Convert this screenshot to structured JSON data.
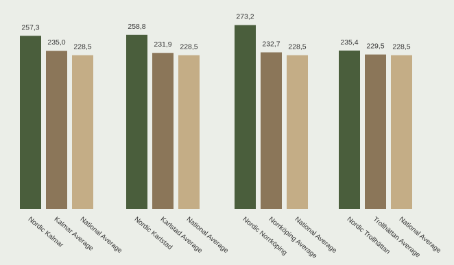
{
  "chart_data": {
    "type": "bar",
    "title": "",
    "xlabel": "",
    "ylabel": "",
    "ylim": [
      0,
      280
    ],
    "grid": false,
    "legend": "none",
    "colors": [
      "#4a5e3c",
      "#8b7659",
      "#c4ad86"
    ],
    "groups": [
      {
        "categories": [
          "Nordic Kalmar",
          "Kalmar Average",
          "National Average"
        ],
        "values": [
          257.3,
          235.0,
          228.5
        ],
        "value_labels": [
          "257,3",
          "235,0",
          "228,5"
        ]
      },
      {
        "categories": [
          "Nordic Karlstad",
          "Karlstad Average",
          "National Average"
        ],
        "values": [
          258.8,
          231.9,
          228.5
        ],
        "value_labels": [
          "258,8",
          "231,9",
          "228,5"
        ]
      },
      {
        "categories": [
          "Nordic Norrköping",
          "Norrköping Average",
          "National Average"
        ],
        "values": [
          273.2,
          232.7,
          228.5
        ],
        "value_labels": [
          "273,2",
          "232,7",
          "228,5"
        ]
      },
      {
        "categories": [
          "Nordic Trollhättan",
          "Trollhättan Average",
          "National Average"
        ],
        "values": [
          235.4,
          229.5,
          228.5
        ],
        "value_labels": [
          "235,4",
          "229,5",
          "228,5"
        ]
      }
    ]
  }
}
